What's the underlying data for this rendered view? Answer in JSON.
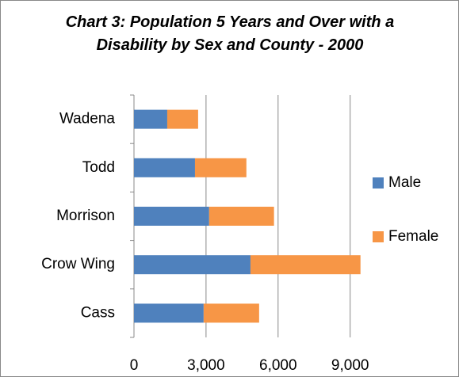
{
  "chart_data": {
    "type": "stacked_barh",
    "title": "Chart 3: Population 5 Years and Over with a Disability by Sex and County - 2000",
    "categories": [
      "Cass",
      "Crow Wing",
      "Morrison",
      "Todd",
      "Wadena"
    ],
    "series": [
      {
        "name": "Male",
        "color": "#4f81bd",
        "values": [
          2900,
          4850,
          3130,
          2540,
          1385
        ]
      },
      {
        "name": "Female",
        "color": "#f79646",
        "values": [
          2310,
          4580,
          2700,
          2140,
          1285
        ]
      }
    ],
    "xlim": [
      0,
      10000
    ],
    "xticks": [
      0,
      {
        "value": 3000,
        "label": "3,000"
      },
      {
        "value": 6000,
        "label": "6,000"
      },
      {
        "value": 9000,
        "label": "9,000"
      }
    ],
    "grid": true,
    "legend": "right"
  }
}
